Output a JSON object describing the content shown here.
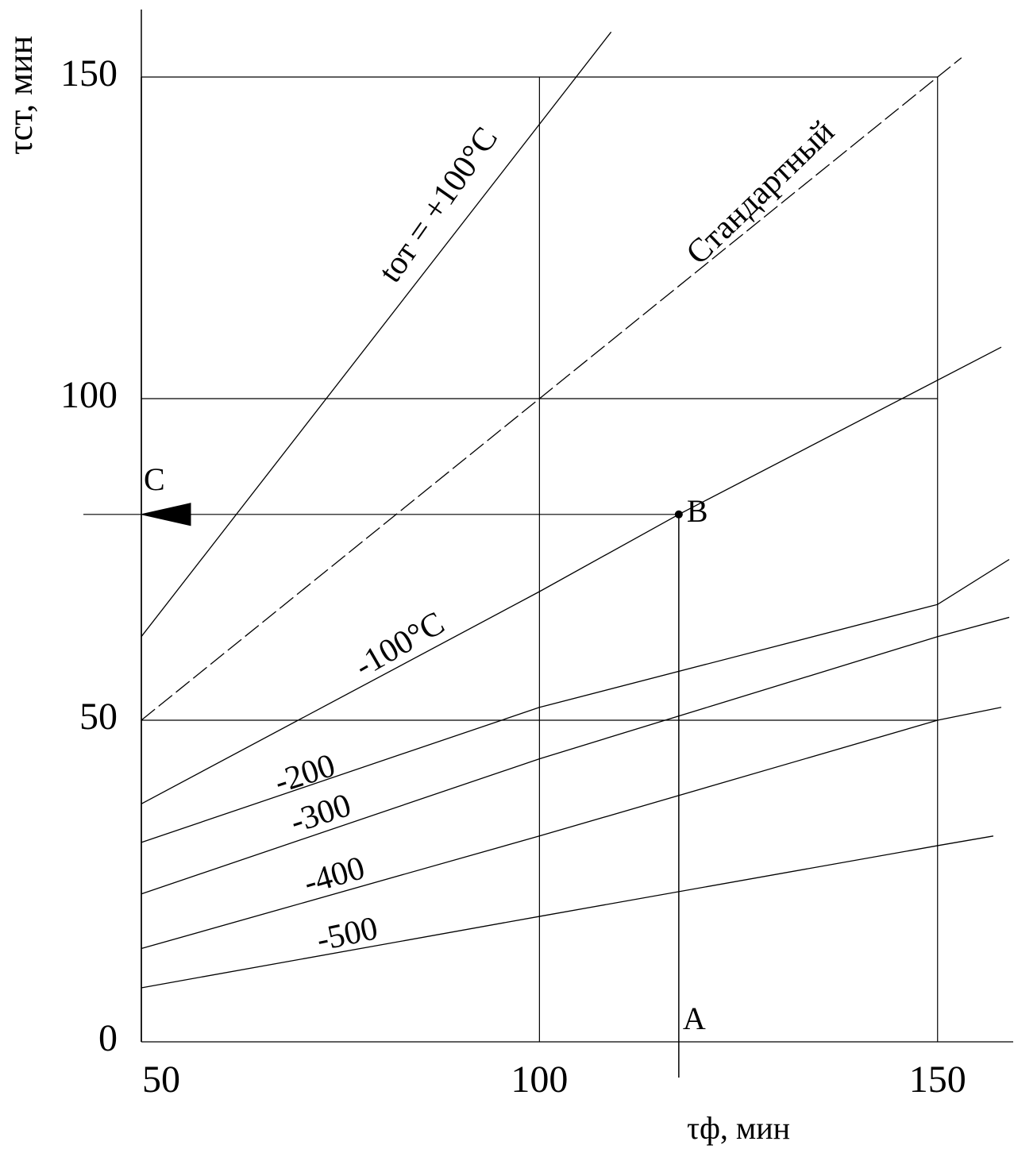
{
  "chart_data": {
    "type": "line",
    "xlabel": "τф, мин",
    "ylabel": "τст, мин",
    "xlim": [
      50,
      159.5
    ],
    "ylim": [
      0,
      160
    ],
    "xticks": [
      50,
      100,
      150
    ],
    "yticks": [
      0,
      50,
      100,
      150
    ],
    "grid": true,
    "series": [
      {
        "name": "tот = +100°C",
        "color": "#000000",
        "style": "solid",
        "x": [
          50,
          109
        ],
        "values": [
          63,
          157
        ]
      },
      {
        "name": "Стандартный",
        "color": "#000000",
        "style": "dashed",
        "x": [
          50,
          153
        ],
        "values": [
          50,
          153
        ]
      },
      {
        "name": "-100°C",
        "color": "#000000",
        "style": "solid",
        "x": [
          50,
          100,
          117.5,
          158
        ],
        "values": [
          37,
          70,
          82,
          108
        ]
      },
      {
        "name": "-200",
        "color": "#000000",
        "style": "solid",
        "x": [
          50,
          100,
          150,
          159
        ],
        "values": [
          31,
          52,
          68,
          75
        ]
      },
      {
        "name": "-300",
        "color": "#000000",
        "style": "solid",
        "x": [
          50,
          100,
          150,
          159
        ],
        "values": [
          23,
          44,
          63,
          66
        ]
      },
      {
        "name": "-400",
        "color": "#000000",
        "style": "solid",
        "x": [
          50,
          100,
          150,
          158
        ],
        "values": [
          14.5,
          32,
          50,
          52
        ]
      },
      {
        "name": "-500",
        "color": "#000000",
        "style": "solid",
        "x": [
          50,
          100,
          150,
          157
        ],
        "values": [
          8.4,
          19.5,
          30.5,
          32
        ]
      }
    ],
    "annotations": [
      {
        "text": "A",
        "x": 117.5,
        "y": 0
      },
      {
        "text": "B",
        "x": 117.5,
        "y": 82
      },
      {
        "text": "C",
        "x": 50,
        "y": 82
      }
    ]
  }
}
